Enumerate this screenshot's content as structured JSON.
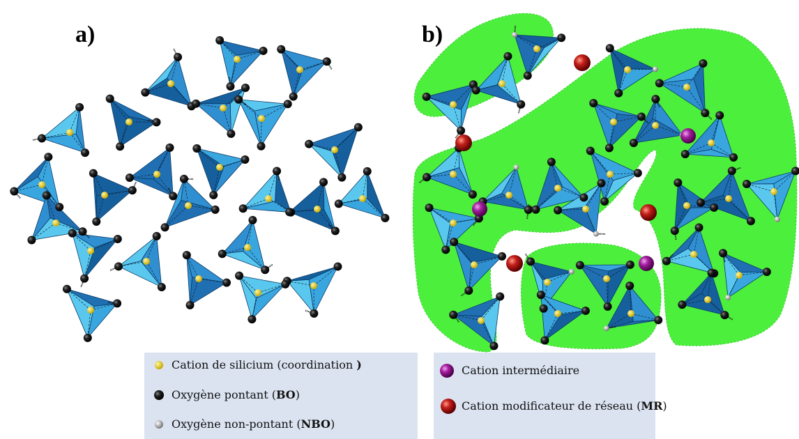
{
  "panels": [
    {
      "label": "a)"
    },
    {
      "label": "b)"
    }
  ],
  "legend": {
    "left": [
      {
        "text": "Cation de silicium (coordination ",
        "bold": ")"
      },
      {
        "text": "Oxygène pontant (",
        "bold": "BO",
        "after": ")"
      },
      {
        "text": "Oxygène non-pontant (",
        "bold": "NBO",
        "after": ")"
      }
    ],
    "right": [
      {
        "text": "Cation intermédiaire"
      },
      {
        "text": "Cation modificateur de réseau (",
        "bold": "MR",
        "after": ")"
      }
    ]
  }
}
